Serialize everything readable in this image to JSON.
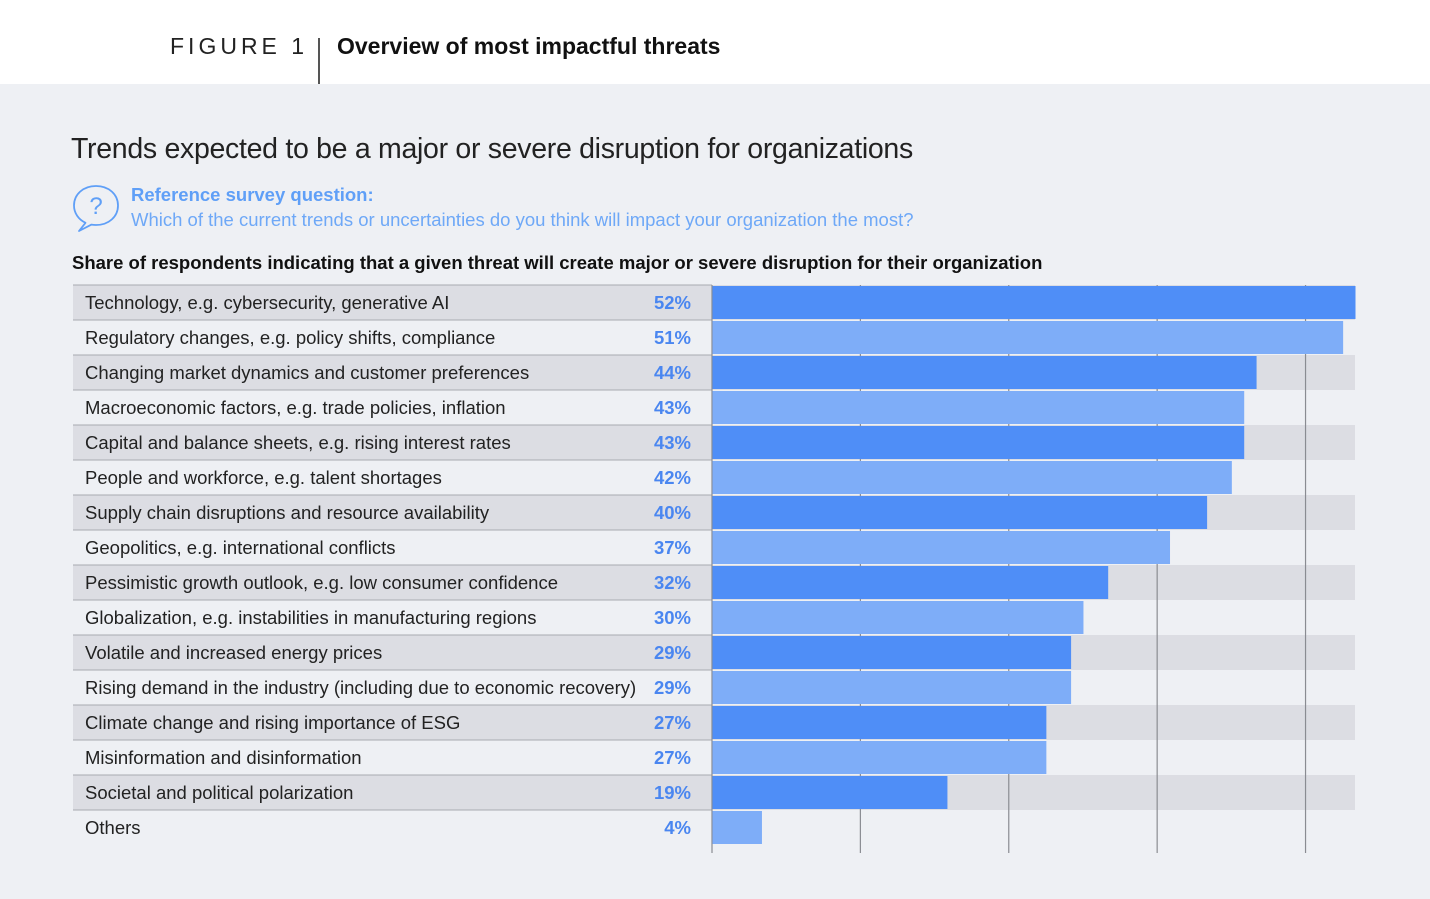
{
  "header": {
    "figure_label": "FIGURE 1",
    "figure_title": "Overview of most impactful threats"
  },
  "question": {
    "icon": "question-bubble-icon",
    "label": "Reference survey question:",
    "text": "Which of the current trends or uncertainties do you think will impact your organization the most?"
  },
  "colors": {
    "bar_dark": "#4f8ef7",
    "bar_light": "#7eadf8",
    "value_text": "#4a86f0",
    "row_shade": "#dcdde3",
    "accent": "#5f9ff7"
  },
  "chart_data": {
    "type": "bar",
    "orientation": "horizontal",
    "title": "Trends expected to be a major or severe disruption for organizations",
    "subtitle": "Share of respondents indicating that a given threat will create major or severe disruption for their organization",
    "xlim": [
      0,
      52
    ],
    "grid": true,
    "categories": [
      "Technology, e.g. cybersecurity, generative AI",
      "Regulatory changes, e.g. policy shifts, compliance",
      "Changing market dynamics and customer preferences",
      "Macroeconomic factors, e.g. trade policies, inflation",
      "Capital and balance sheets, e.g. rising interest rates",
      "People and workforce, e.g. talent shortages",
      "Supply chain disruptions and resource availability",
      "Geopolitics, e.g. international conflicts",
      "Pessimistic growth outlook, e.g. low consumer confidence",
      "Globalization, e.g. instabilities in manufacturing regions",
      "Volatile and increased energy prices",
      "Rising demand in the industry (including due to economic recovery)",
      "Climate change and rising importance of ESG",
      "Misinformation and disinformation",
      "Societal and political polarization",
      "Others"
    ],
    "values": [
      52,
      51,
      44,
      43,
      43,
      42,
      40,
      37,
      32,
      30,
      29,
      29,
      27,
      27,
      19,
      4
    ],
    "value_labels": [
      "52%",
      "51%",
      "44%",
      "43%",
      "43%",
      "42%",
      "40%",
      "37%",
      "32%",
      "30%",
      "29%",
      "29%",
      "27%",
      "27%",
      "19%",
      "4%"
    ]
  }
}
